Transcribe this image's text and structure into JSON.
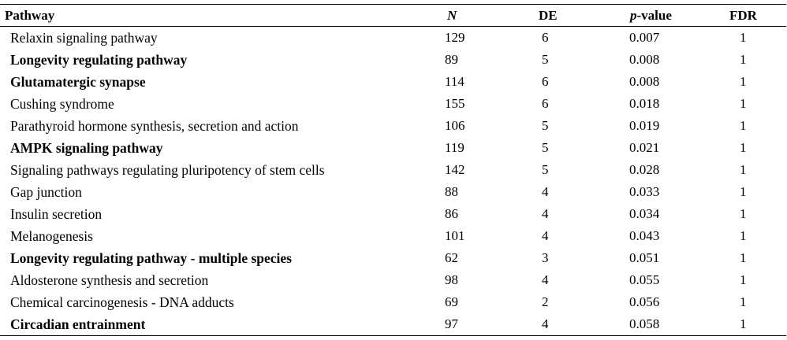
{
  "table": {
    "headers": {
      "pathway": "Pathway",
      "n": "N",
      "de": "DE",
      "p_italic": "p",
      "p_rest": "-value",
      "fdr": "FDR"
    },
    "rows": [
      {
        "pathway": "Relaxin signaling pathway",
        "bold": false,
        "n": "129",
        "de": "6",
        "p": "0.007",
        "fdr": "1"
      },
      {
        "pathway": "Longevity regulating pathway",
        "bold": true,
        "n": "89",
        "de": "5",
        "p": "0.008",
        "fdr": "1"
      },
      {
        "pathway": "Glutamatergic synapse",
        "bold": true,
        "n": "114",
        "de": "6",
        "p": "0.008",
        "fdr": "1"
      },
      {
        "pathway": "Cushing syndrome",
        "bold": false,
        "n": "155",
        "de": "6",
        "p": "0.018",
        "fdr": "1"
      },
      {
        "pathway": "Parathyroid hormone synthesis, secretion and action",
        "bold": false,
        "n": "106",
        "de": "5",
        "p": "0.019",
        "fdr": "1"
      },
      {
        "pathway": "AMPK signaling pathway",
        "bold": true,
        "n": "119",
        "de": "5",
        "p": "0.021",
        "fdr": "1"
      },
      {
        "pathway": "Signaling pathways regulating pluripotency of stem cells",
        "bold": false,
        "n": "142",
        "de": "5",
        "p": "0.028",
        "fdr": "1"
      },
      {
        "pathway": "Gap junction",
        "bold": false,
        "n": "88",
        "de": "4",
        "p": "0.033",
        "fdr": "1"
      },
      {
        "pathway": "Insulin secretion",
        "bold": false,
        "n": "86",
        "de": "4",
        "p": "0.034",
        "fdr": "1"
      },
      {
        "pathway": "Melanogenesis",
        "bold": false,
        "n": "101",
        "de": "4",
        "p": "0.043",
        "fdr": "1"
      },
      {
        "pathway": "Longevity regulating pathway - multiple species",
        "bold": true,
        "n": "62",
        "de": "3",
        "p": "0.051",
        "fdr": "1"
      },
      {
        "pathway": "Aldosterone synthesis and secretion",
        "bold": false,
        "n": "98",
        "de": "4",
        "p": "0.055",
        "fdr": "1"
      },
      {
        "pathway": "Chemical carcinogenesis - DNA adducts",
        "bold": false,
        "n": "69",
        "de": "2",
        "p": "0.056",
        "fdr": "1"
      },
      {
        "pathway": "Circadian entrainment",
        "bold": true,
        "n": "97",
        "de": "4",
        "p": "0.058",
        "fdr": "1"
      }
    ]
  }
}
